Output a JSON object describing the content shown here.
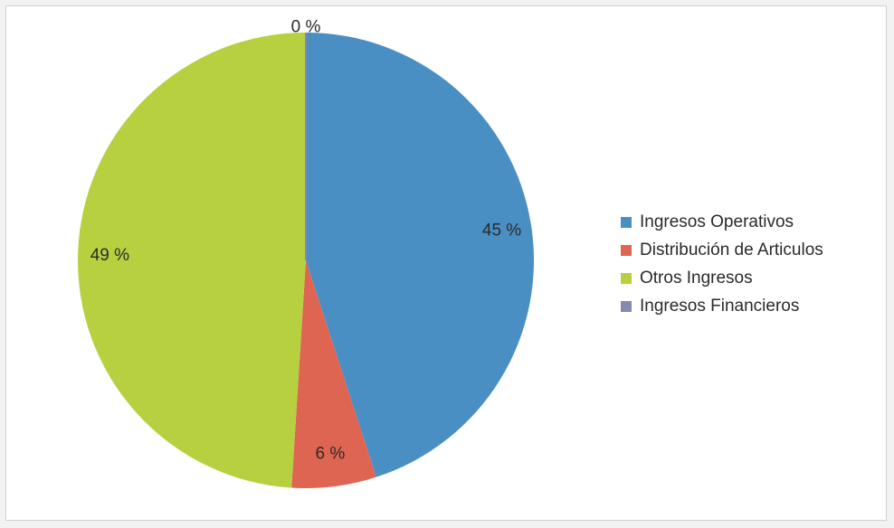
{
  "chart_data": {
    "type": "pie",
    "categories": [
      "Ingresos Operativos",
      "Distribución de Articulos",
      "Otros Ingresos",
      "Ingresos Financieros"
    ],
    "values": [
      45,
      6,
      49,
      0
    ],
    "value_labels": [
      "45 %",
      "6 %",
      "49 %",
      "0 %"
    ],
    "colors": [
      "#4a8fc4",
      "#de6552",
      "#b7d040",
      "#8788b0"
    ],
    "legend_position": "right"
  }
}
